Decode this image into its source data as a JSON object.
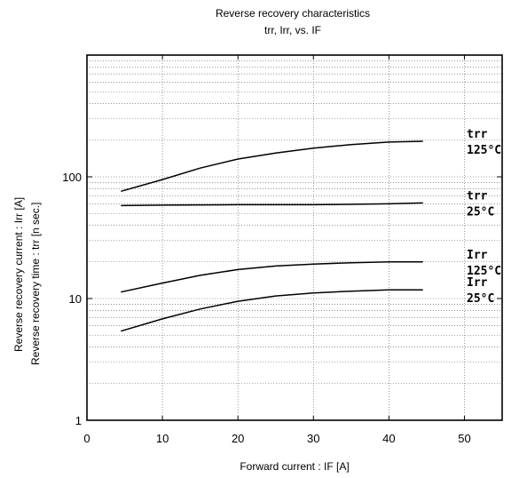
{
  "chart_data": {
    "type": "line",
    "title": "Reverse recovery characteristics",
    "subtitle": "trr, Irr, vs. IF",
    "xlabel": "Forward current : IF [A]",
    "ylabel": [
      "Reverse recovery current : Irr [A]",
      "Reverse recovery time : trr [n sec.]"
    ],
    "xlim": [
      0,
      55
    ],
    "ylim": [
      1,
      1000
    ],
    "yscale": "log",
    "x_ticks": [
      "0",
      "10",
      "20",
      "30",
      "40",
      "50"
    ],
    "y_ticks": [
      "1",
      "10",
      "100"
    ],
    "grid": true,
    "series": [
      {
        "label_line1": "trr",
        "label_line2": "125°C",
        "x": [
          4.5,
          10,
          15,
          20,
          25,
          30,
          35,
          40,
          44.5
        ],
        "y": [
          76,
          95,
          118,
          140,
          157,
          172,
          184,
          193,
          196
        ]
      },
      {
        "label_line1": "trr",
        "label_line2": "25°C",
        "x": [
          4.5,
          10,
          20,
          30,
          40,
          44.5
        ],
        "y": [
          58,
          58.5,
          59,
          59,
          60,
          61
        ]
      },
      {
        "label_line1": "Irr",
        "label_line2": "125°C",
        "x": [
          4.5,
          10,
          15,
          20,
          25,
          30,
          35,
          40,
          44.5
        ],
        "y": [
          11.3,
          13.4,
          15.5,
          17.3,
          18.5,
          19.2,
          19.7,
          20,
          20
        ]
      },
      {
        "label_line1": "Irr",
        "label_line2": "25°C",
        "x": [
          4.5,
          10,
          15,
          20,
          25,
          30,
          35,
          40,
          44.5
        ],
        "y": [
          5.4,
          6.8,
          8.2,
          9.5,
          10.5,
          11.1,
          11.5,
          11.8,
          11.8
        ]
      }
    ]
  }
}
